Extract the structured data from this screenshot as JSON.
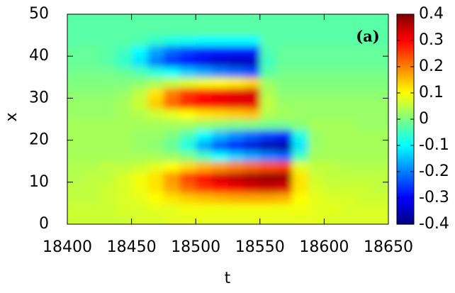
{
  "chart_data": {
    "type": "heatmap",
    "label": "(a)",
    "xlabel": "t",
    "ylabel": "x",
    "t": [
      18406.25,
      18418.75,
      18431.25,
      18443.75,
      18456.25,
      18468.75,
      18481.25,
      18493.75,
      18506.25,
      18518.75,
      18531.25,
      18543.75,
      18556.25,
      18568.75,
      18581.25,
      18593.75,
      18606.25,
      18618.75,
      18631.25,
      18643.75
    ],
    "x": [
      1.25,
      3.75,
      6.25,
      8.75,
      11.25,
      13.75,
      16.25,
      18.75,
      21.25,
      23.75,
      26.25,
      28.75,
      31.25,
      33.75,
      36.25,
      38.75,
      41.25,
      43.75,
      46.25,
      48.75
    ],
    "values": [
      [
        0.06,
        0.06,
        0.06,
        0.06,
        0.07,
        0.07,
        0.08,
        0.08,
        0.08,
        0.08,
        0.08,
        0.08,
        0.08,
        0.08,
        0.08,
        0.08,
        0.07,
        0.07,
        0.07,
        0.07
      ],
      [
        0.06,
        0.06,
        0.06,
        0.07,
        0.07,
        0.08,
        0.08,
        0.09,
        0.09,
        0.09,
        0.09,
        0.09,
        0.09,
        0.09,
        0.09,
        0.08,
        0.08,
        0.07,
        0.07,
        0.07
      ],
      [
        0.05,
        0.05,
        0.06,
        0.07,
        0.08,
        0.1,
        0.12,
        0.14,
        0.15,
        0.16,
        0.17,
        0.17,
        0.17,
        0.16,
        0.1,
        0.08,
        0.07,
        0.07,
        0.06,
        0.06
      ],
      [
        0.05,
        0.05,
        0.06,
        0.07,
        0.09,
        0.12,
        0.17,
        0.22,
        0.26,
        0.29,
        0.31,
        0.33,
        0.34,
        0.33,
        0.12,
        0.07,
        0.06,
        0.06,
        0.06,
        0.05
      ],
      [
        0.04,
        0.05,
        0.05,
        0.07,
        0.09,
        0.12,
        0.18,
        0.25,
        0.3,
        0.33,
        0.35,
        0.37,
        0.38,
        0.38,
        0.12,
        0.06,
        0.05,
        0.05,
        0.05,
        0.05
      ],
      [
        0.04,
        0.04,
        0.05,
        0.05,
        0.06,
        0.08,
        0.1,
        0.13,
        0.16,
        0.18,
        0.2,
        0.22,
        0.24,
        0.25,
        0.08,
        0.05,
        0.05,
        0.04,
        0.04,
        0.04
      ],
      [
        0.03,
        0.03,
        0.03,
        0.03,
        0.03,
        0.03,
        0.02,
        0.0,
        -0.05,
        -0.1,
        -0.14,
        -0.17,
        -0.2,
        -0.22,
        -0.05,
        0.03,
        0.03,
        0.03,
        0.03,
        0.03
      ],
      [
        0.03,
        0.03,
        0.03,
        0.03,
        0.02,
        0.01,
        -0.02,
        -0.08,
        -0.17,
        -0.24,
        -0.29,
        -0.33,
        -0.36,
        -0.37,
        -0.12,
        0.02,
        0.03,
        0.03,
        0.03,
        0.03
      ],
      [
        0.03,
        0.03,
        0.03,
        0.03,
        0.02,
        0.02,
        0.0,
        -0.04,
        -0.1,
        -0.15,
        -0.19,
        -0.22,
        -0.25,
        -0.27,
        -0.08,
        0.02,
        0.03,
        0.03,
        0.03,
        0.03
      ],
      [
        0.03,
        0.03,
        0.03,
        0.03,
        0.03,
        0.03,
        0.03,
        0.03,
        0.02,
        0.01,
        0.0,
        0.0,
        -0.01,
        -0.01,
        0.01,
        0.03,
        0.03,
        0.03,
        0.02,
        0.02
      ],
      [
        0.02,
        0.02,
        0.02,
        0.03,
        0.04,
        0.06,
        0.08,
        0.1,
        0.12,
        0.13,
        0.14,
        0.15,
        0.04,
        0.03,
        0.02,
        0.02,
        0.02,
        0.02,
        0.02,
        0.02
      ],
      [
        0.02,
        0.02,
        0.02,
        0.03,
        0.06,
        0.14,
        0.22,
        0.27,
        0.3,
        0.31,
        0.32,
        0.32,
        0.05,
        0.02,
        0.02,
        0.02,
        0.02,
        0.02,
        0.02,
        0.02
      ],
      [
        0.01,
        0.01,
        0.01,
        0.02,
        0.05,
        0.12,
        0.2,
        0.26,
        0.29,
        0.31,
        0.32,
        0.33,
        0.04,
        0.01,
        0.01,
        0.01,
        0.01,
        0.01,
        0.01,
        0.01
      ],
      [
        0.0,
        0.0,
        0.0,
        0.0,
        0.01,
        0.03,
        0.05,
        0.07,
        0.09,
        0.1,
        0.11,
        0.13,
        0.02,
        0.0,
        0.0,
        0.0,
        0.0,
        0.0,
        0.0,
        0.0
      ],
      [
        -0.01,
        -0.01,
        -0.01,
        -0.02,
        -0.04,
        -0.07,
        -0.1,
        -0.14,
        -0.17,
        -0.2,
        -0.22,
        -0.24,
        -0.03,
        -0.01,
        -0.01,
        -0.01,
        -0.01,
        -0.01,
        -0.01,
        -0.01
      ],
      [
        -0.02,
        -0.02,
        -0.03,
        -0.06,
        -0.12,
        -0.2,
        -0.26,
        -0.3,
        -0.32,
        -0.34,
        -0.35,
        -0.35,
        -0.05,
        -0.02,
        -0.02,
        -0.02,
        -0.02,
        -0.02,
        -0.02,
        -0.02
      ],
      [
        -0.02,
        -0.02,
        -0.03,
        -0.05,
        -0.1,
        -0.17,
        -0.22,
        -0.25,
        -0.27,
        -0.28,
        -0.28,
        -0.28,
        -0.04,
        -0.02,
        -0.02,
        -0.02,
        -0.02,
        -0.02,
        -0.02,
        -0.02
      ],
      [
        -0.03,
        -0.03,
        -0.03,
        -0.03,
        -0.04,
        -0.06,
        -0.08,
        -0.09,
        -0.1,
        -0.1,
        -0.1,
        -0.1,
        -0.03,
        -0.03,
        -0.03,
        -0.03,
        -0.03,
        -0.03,
        -0.03,
        -0.03
      ],
      [
        -0.03,
        -0.03,
        -0.03,
        -0.03,
        -0.03,
        -0.03,
        -0.03,
        -0.03,
        -0.03,
        -0.03,
        -0.03,
        -0.03,
        -0.03,
        -0.03,
        -0.03,
        -0.03,
        -0.03,
        -0.03,
        -0.03,
        -0.03
      ],
      [
        -0.03,
        -0.03,
        -0.03,
        -0.03,
        -0.03,
        -0.03,
        -0.03,
        -0.03,
        -0.03,
        -0.03,
        -0.03,
        -0.03,
        -0.03,
        -0.03,
        -0.03,
        -0.03,
        -0.03,
        -0.03,
        -0.03,
        -0.03
      ]
    ],
    "xlim": [
      18400,
      18650
    ],
    "xticks": [
      18400,
      18450,
      18500,
      18550,
      18600,
      18650
    ],
    "ylim": [
      0,
      50
    ],
    "yticks": [
      0,
      10,
      20,
      30,
      40,
      50
    ],
    "clim": [
      -0.4,
      0.4
    ],
    "cticks": [
      -0.4,
      -0.3,
      -0.2,
      -0.1,
      0,
      0.1,
      0.2,
      0.3,
      0.4
    ],
    "colormap": "jet"
  }
}
